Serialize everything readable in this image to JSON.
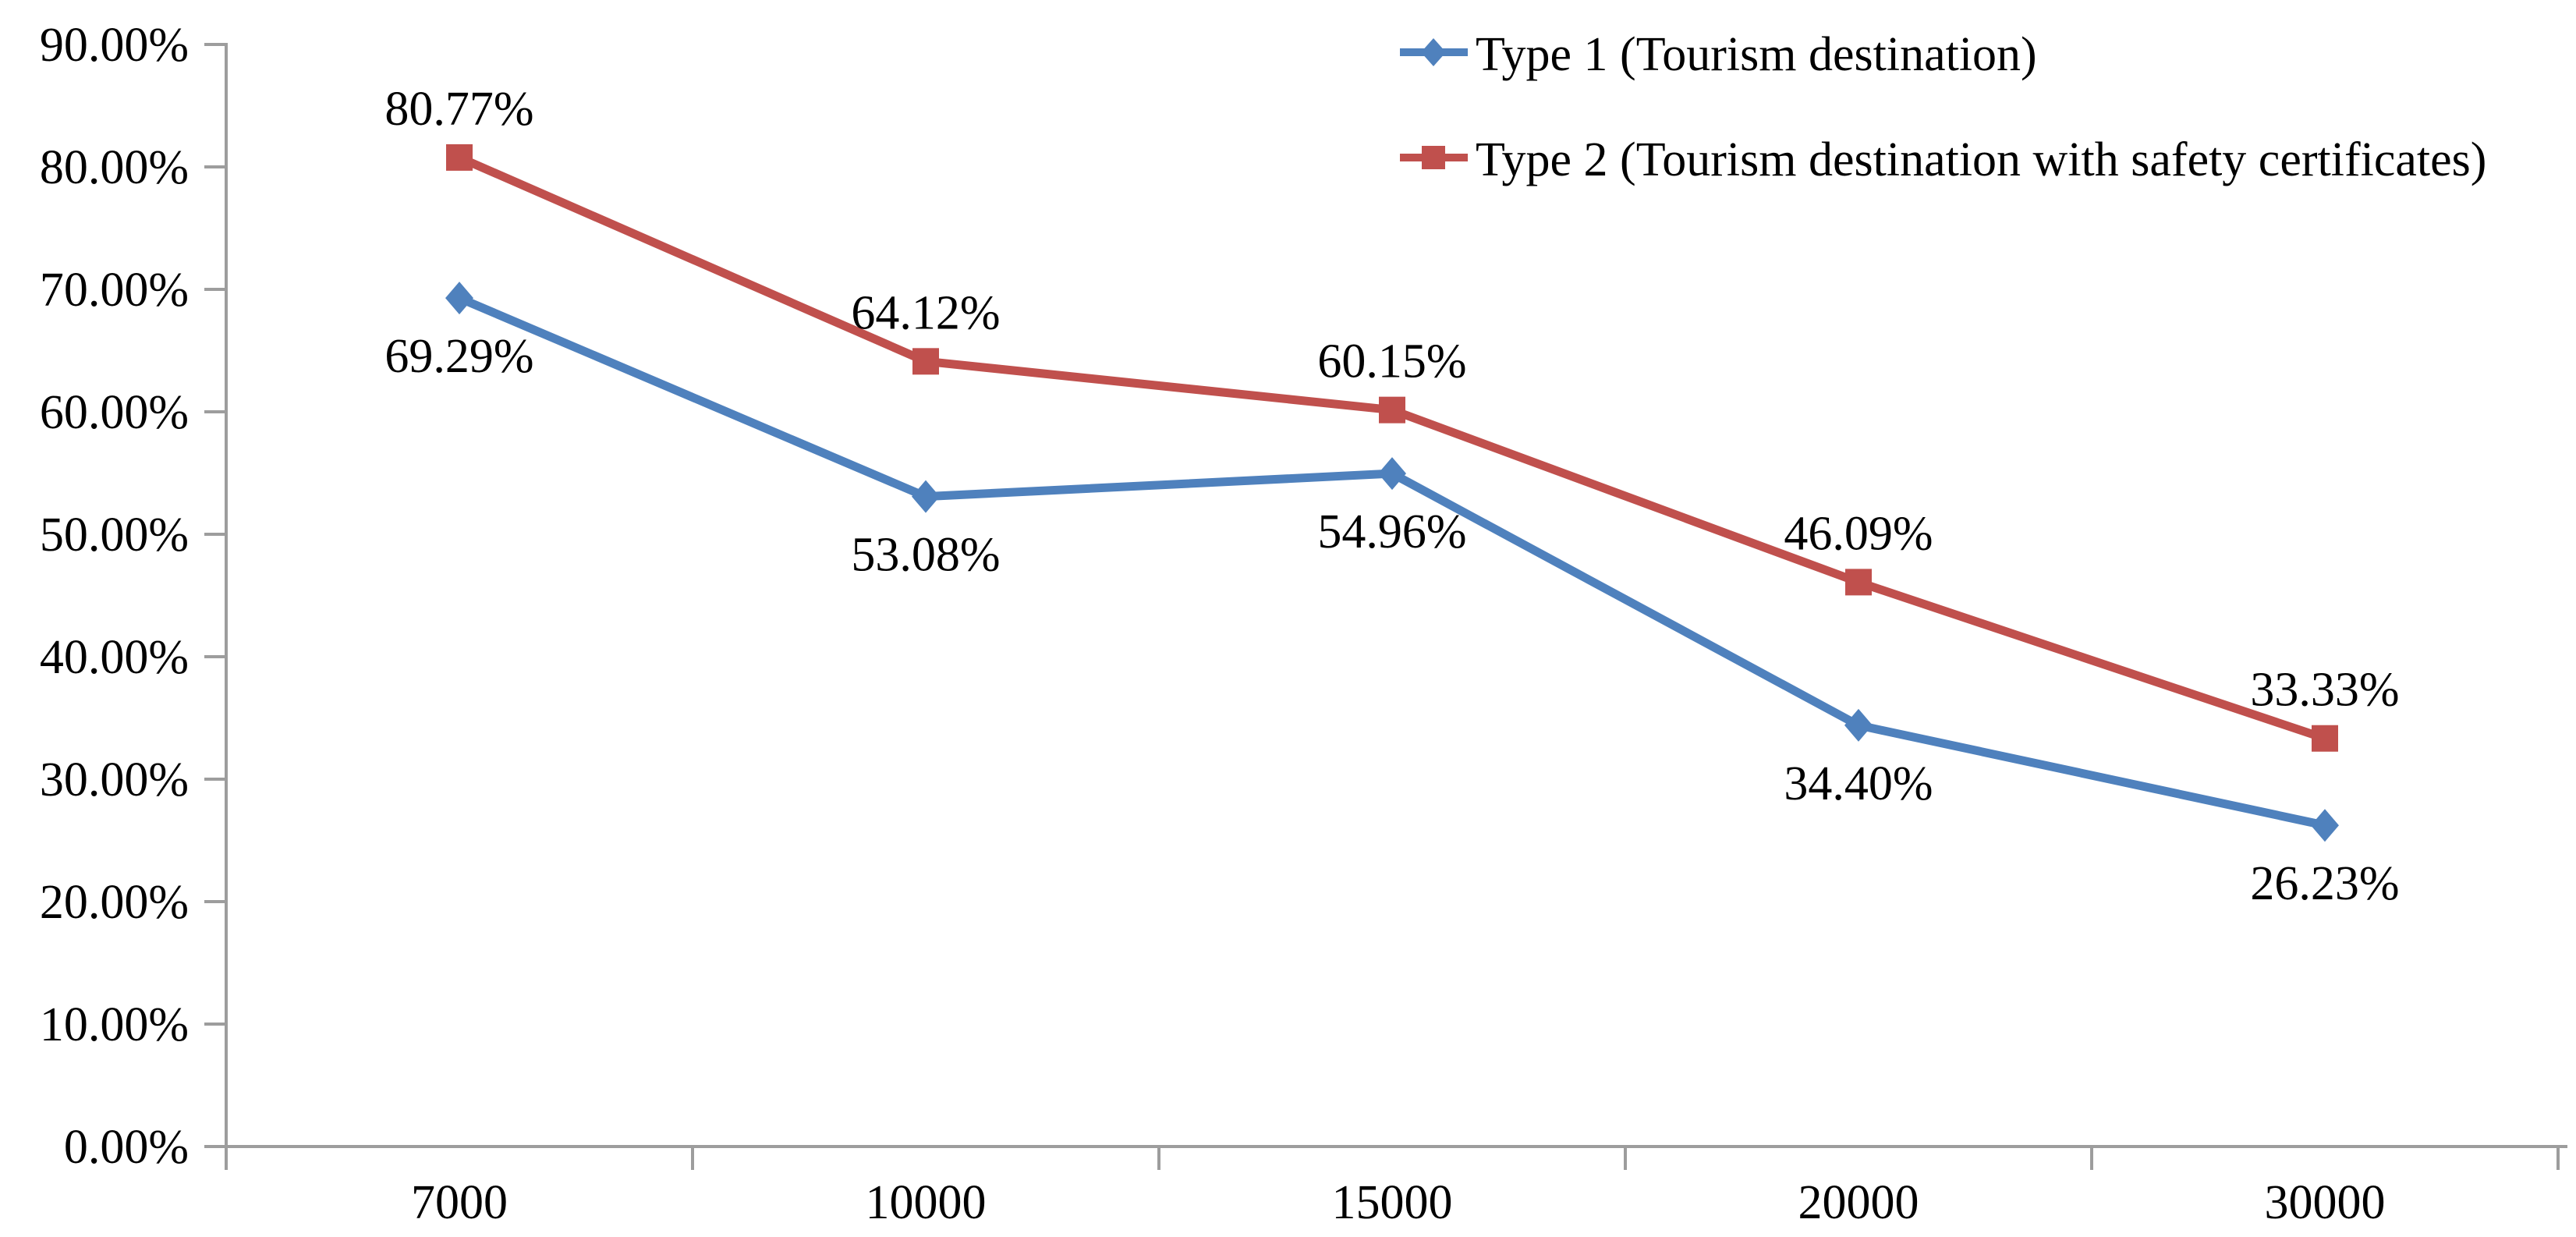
{
  "chart_data": {
    "type": "line",
    "title": "",
    "xlabel": "",
    "ylabel": "",
    "categories": [
      "7000",
      "10000",
      "15000",
      "20000",
      "30000"
    ],
    "series": [
      {
        "name": "Type 1 (Tourism destination)",
        "values": [
          69.29,
          53.08,
          54.96,
          34.4,
          26.23
        ],
        "point_labels": [
          "69.29%",
          "53.08%",
          "54.96%",
          "34.40%",
          "26.23%"
        ],
        "color": "#4F81BD",
        "marker": "diamond",
        "label_position": "below"
      },
      {
        "name": "Type 2 (Tourism destination with safety certificates)",
        "values": [
          80.77,
          64.12,
          60.15,
          46.09,
          33.33
        ],
        "point_labels": [
          "80.77%",
          "64.12%",
          "60.15%",
          "46.09%",
          "33.33%"
        ],
        "color": "#C0504D",
        "marker": "square",
        "label_position": "above"
      }
    ],
    "y_axis": {
      "min": 0,
      "max": 90,
      "step": 10,
      "tick_labels": [
        "0.00%",
        "10.00%",
        "20.00%",
        "30.00%",
        "40.00%",
        "50.00%",
        "60.00%",
        "70.00%",
        "80.00%",
        "90.00%"
      ]
    },
    "x_axis": {
      "tick_labels": [
        "7000",
        "10000",
        "15000",
        "20000",
        "30000"
      ]
    },
    "legend": {
      "position": "top-right",
      "items": [
        "Type 1 (Tourism destination)",
        "Type 2 (Tourism destination with safety certificates)"
      ]
    },
    "grid": false,
    "colors": {
      "axis": "#9D9D9D",
      "text": "#000000",
      "background": "#FFFFFF",
      "series1": "#4F81BD",
      "series2": "#C0504D"
    }
  }
}
